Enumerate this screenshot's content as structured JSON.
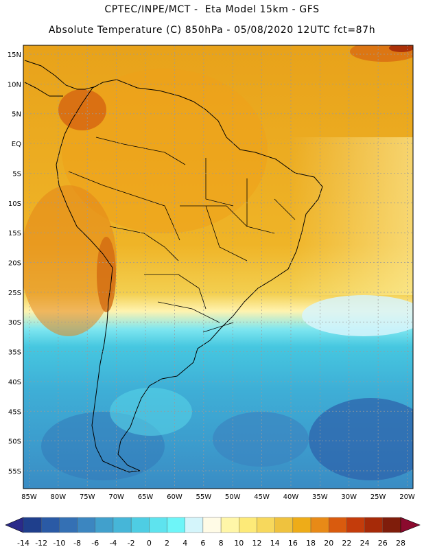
{
  "header": {
    "line1": "CPTEC/INPE/MCT -  Eta Model 15km - GFS",
    "line2": "Absolute Temperature (C) 850hPa - 05/08/2020 12UTC fct=87h"
  },
  "map": {
    "lon_range": [
      -86,
      -19
    ],
    "lat_range": [
      -58,
      16.5
    ],
    "lat_labels": [
      "15N",
      "10N",
      "5N",
      "EQ",
      "5S",
      "10S",
      "15S",
      "20S",
      "25S",
      "30S",
      "35S",
      "40S",
      "45S",
      "50S",
      "55S"
    ],
    "lat_values": [
      15,
      10,
      5,
      0,
      -5,
      -10,
      -15,
      -20,
      -25,
      -30,
      -35,
      -40,
      -45,
      -50,
      -55
    ],
    "lon_labels": [
      "85W",
      "80W",
      "75W",
      "70W",
      "65W",
      "60W",
      "55W",
      "50W",
      "45W",
      "40W",
      "35W",
      "30W",
      "25W",
      "20W"
    ],
    "lon_values": [
      -85,
      -80,
      -75,
      -70,
      -65,
      -60,
      -55,
      -50,
      -45,
      -40,
      -35,
      -30,
      -25,
      -20
    ]
  },
  "colorbar": {
    "labels": [
      "-14",
      "-12",
      "-10",
      "-8",
      "-6",
      "-4",
      "-2",
      "0",
      "2",
      "4",
      "6",
      "8",
      "10",
      "12",
      "14",
      "16",
      "18",
      "20",
      "22",
      "24",
      "26",
      "28"
    ],
    "colors": [
      "#1f3f8c",
      "#2a5aa5",
      "#3470b4",
      "#3c86c0",
      "#41a0cc",
      "#46b6d8",
      "#4ecde3",
      "#5ee3ee",
      "#6ef5f8",
      "#d4f5fb",
      "#fffbe6",
      "#fff6a8",
      "#fdea78",
      "#f7d85c",
      "#efc23e",
      "#eeac18",
      "#e88a17",
      "#d95b0e",
      "#c43c0b",
      "#a62a08",
      "#7f1d0b"
    ],
    "under_color": "#2a2a8a",
    "over_color": "#8b0a2e"
  }
}
